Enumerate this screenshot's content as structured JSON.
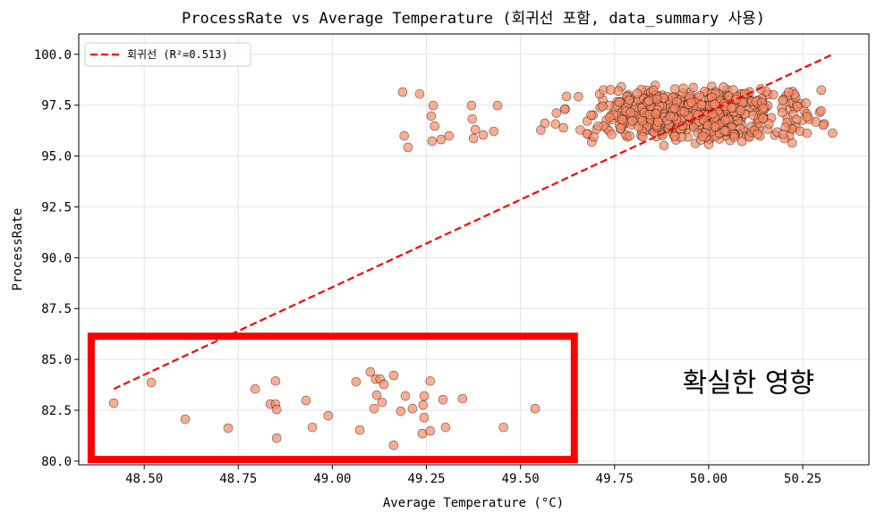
{
  "chart_data": {
    "type": "scatter",
    "title": "ProcessRate vs Average Temperature (회귀선 포함, data_summary 사용)",
    "xlabel": "Average Temperature (°C)",
    "ylabel": "ProcessRate",
    "xlim": [
      48.326,
      50.426
    ],
    "ylim": [
      79.82,
      101.0
    ],
    "xticks": [
      48.5,
      48.75,
      49.0,
      49.25,
      49.5,
      49.75,
      50.0,
      50.25
    ],
    "xtick_labels": [
      "48.50",
      "48.75",
      "49.00",
      "49.25",
      "49.50",
      "49.75",
      "50.00",
      "50.25"
    ],
    "yticks": [
      80,
      82.5,
      85,
      87.5,
      90,
      92.5,
      95,
      97.5,
      100
    ],
    "ytick_labels": [
      "80.0",
      "82.5",
      "85.0",
      "87.5",
      "90.0",
      "92.5",
      "95.0",
      "97.5",
      "100.0"
    ],
    "grid": true,
    "legend": {
      "placement": "top-left",
      "entries": [
        {
          "label": "회귀선 (R²=0.513)",
          "style": "dashed",
          "color": "#ff0000"
        }
      ]
    },
    "point_color": "#fa8a64",
    "point_edge": "#000000",
    "regression_line": {
      "x": [
        48.419,
        50.33
      ],
      "y": [
        83.55,
        100.0
      ],
      "r2": 0.513,
      "color": "#ff0000"
    },
    "highlight_box": {
      "x": [
        48.359,
        49.643
      ],
      "y": [
        80.08,
        86.14
      ],
      "color": "#ff0000"
    },
    "annotation": {
      "text": "확실한 영향",
      "x": 49.93,
      "y": 83.4
    },
    "series": [
      {
        "name": "low_cluster",
        "x": [
          48.419,
          48.519,
          48.609,
          48.723,
          48.795,
          48.835,
          48.849,
          48.849,
          48.852,
          48.852,
          48.93,
          48.947,
          48.989,
          49.063,
          49.073,
          49.101,
          49.111,
          49.115,
          49.118,
          49.127,
          49.132,
          49.137,
          49.163,
          49.163,
          49.182,
          49.194,
          49.213,
          49.241,
          49.244,
          49.244,
          49.239,
          49.26,
          49.26,
          49.294,
          49.301,
          49.346,
          49.455,
          49.539
        ],
        "y": [
          82.85,
          83.86,
          82.06,
          81.62,
          83.55,
          82.8,
          83.94,
          82.8,
          82.54,
          81.13,
          82.98,
          81.66,
          82.23,
          83.9,
          81.53,
          84.38,
          82.58,
          84.03,
          83.24,
          84.03,
          82.89,
          83.77,
          84.21,
          80.78,
          82.45,
          83.2,
          82.58,
          82.76,
          83.2,
          82.14,
          81.35,
          83.94,
          81.48,
          83.02,
          81.66,
          83.07,
          81.66,
          82.58
        ]
      },
      {
        "name": "high_sparse",
        "x": [
          49.187,
          49.232,
          49.191,
          49.201,
          49.268,
          49.263,
          49.272,
          49.265,
          49.289,
          49.31,
          49.37,
          49.372,
          49.375,
          49.38,
          49.401,
          49.429,
          49.439
        ],
        "y": [
          98.14,
          98.05,
          95.99,
          95.42,
          97.48,
          96.96,
          96.47,
          95.73,
          95.81,
          95.99,
          97.48,
          96.82,
          95.86,
          96.3,
          96.03,
          96.21,
          97.48
        ]
      },
      {
        "name": "high_dense",
        "generated": {
          "n": 560,
          "x_mean": 49.96,
          "x_sd": 0.15,
          "x_range": [
            49.45,
            50.34
          ],
          "y_range": [
            95.5,
            98.5
          ],
          "seed": 7
        }
      }
    ]
  }
}
